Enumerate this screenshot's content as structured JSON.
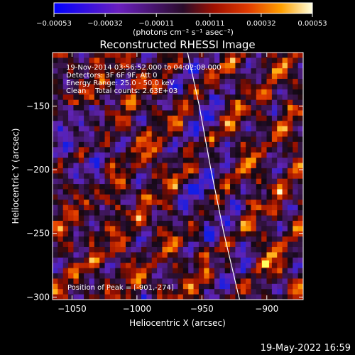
{
  "chart_data": {
    "type": "heatmap",
    "title": "Reconstructed RHESSI Image",
    "xlabel": "Heliocentric X (arcsec)",
    "ylabel": "Heliocentric Y (arcsec)",
    "xlim": [
      -1065,
      -872
    ],
    "ylim": [
      -302,
      -108
    ],
    "x_ticks": [
      {
        "value": -1050,
        "label": "−1050"
      },
      {
        "value": -1000,
        "label": "−1000"
      },
      {
        "value": -950,
        "label": "−950"
      },
      {
        "value": -900,
        "label": "−900"
      }
    ],
    "y_ticks": [
      {
        "value": -150,
        "label": "−150"
      },
      {
        "value": -200,
        "label": "−200"
      },
      {
        "value": -250,
        "label": "−250"
      },
      {
        "value": -300,
        "label": "−300"
      }
    ],
    "colorbar": {
      "min": -0.00053,
      "max": 0.00053,
      "ticks": [
        {
          "value": -0.00053,
          "label": "−0.00053"
        },
        {
          "value": -0.00032,
          "label": "−0.00032"
        },
        {
          "value": -0.00011,
          "label": "−0.00011"
        },
        {
          "value": 0.00011,
          "label": "0.00011"
        },
        {
          "value": 0.00032,
          "label": "0.00032"
        },
        {
          "value": 0.00053,
          "label": "0.00053"
        }
      ],
      "units_label": "(photons cm⁻² s⁻¹ asec⁻²)"
    },
    "info_lines": [
      "19-Nov-2014 03:56:52.000 to 04:02:08.000",
      "Detectors: 3F 6F 9F, Att 0",
      "Energy Range: 25.0 - 50.0 keV",
      "Clean    Total counts: 2.63E+03"
    ],
    "peak_label": "Position of Peak = [-901,-274]",
    "peak": {
      "x": -901,
      "y": -274
    },
    "limb_points": [
      [
        -961,
        -108
      ],
      [
        -952,
        -150
      ],
      [
        -943,
        -200
      ],
      [
        -933,
        -250
      ],
      [
        -921,
        -302
      ]
    ],
    "footer_date": "19-May-2022 16:59",
    "colors": {
      "background": "#000000",
      "line": "#ffffff"
    }
  }
}
